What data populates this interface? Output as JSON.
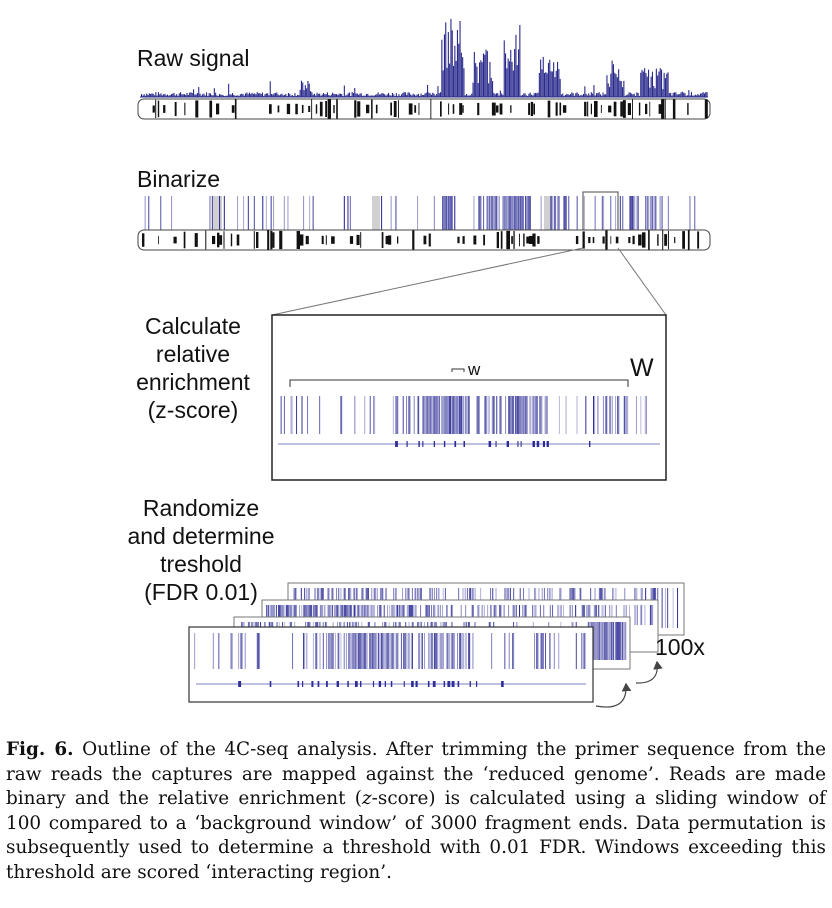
{
  "figure": {
    "labels": {
      "raw_signal": "Raw signal",
      "binarize": "Binarize",
      "calc_line1": "Calculate",
      "calc_line2": "relative",
      "calc_line3": "enrichment",
      "calc_line4": "(z-score)",
      "rand_line1": "Randomize",
      "rand_line2": "and determine",
      "rand_line3": "treshold",
      "rand_line4": "(FDR 0.01)",
      "window_small": "w",
      "window_large": "W",
      "repeat_count": "100x"
    },
    "colors": {
      "signal": "#2a2a8c",
      "binary": "#2e2e96",
      "light_gray": "#d0d0d0",
      "chromosome_dark": "#111111"
    }
  },
  "caption": {
    "label": "Fig. 6.",
    "text_before_z": "Outline of the 4C-seq analysis. After trimming the primer sequence from the raw reads the captures are mapped against the ‘reduced genome’. Reads are made binary and the relative enrichment (",
    "z": "z",
    "text_after_z": "-score) is calculated using a sliding window of 100 compared to a ‘background window’ of 3000 fragment ends. Data permutation is subsequently used to determine a threshold with 0.01 FDR. Windows exceeding this threshold are scored ‘interacting region’."
  }
}
